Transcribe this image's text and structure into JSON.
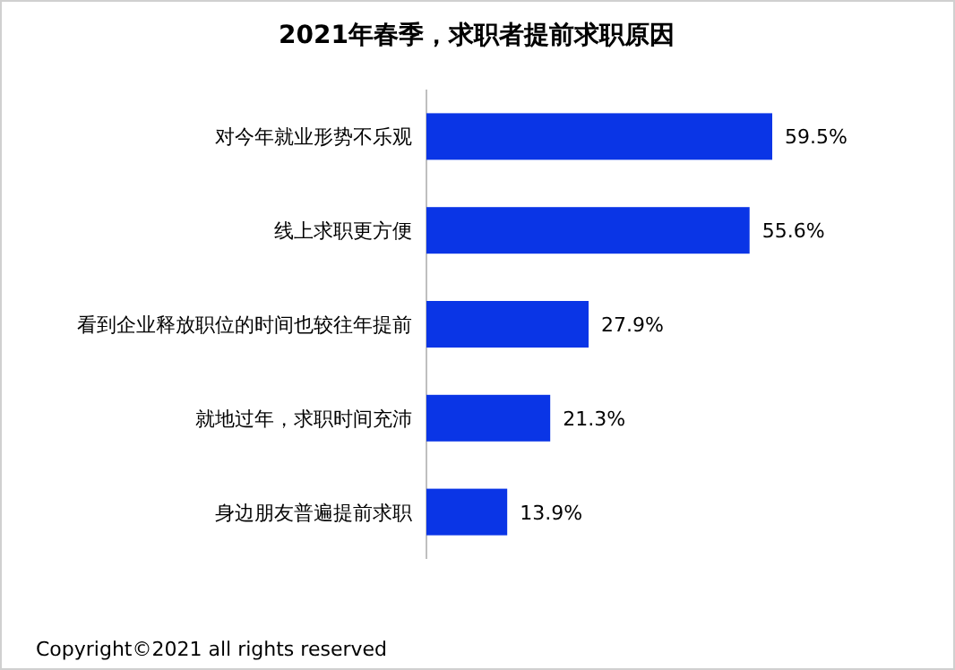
{
  "chart_data": {
    "type": "bar",
    "orientation": "horizontal",
    "title": "2021年春季，求职者提前求职原因",
    "categories": [
      "对今年就业形势不乐观",
      "线上求职更方便",
      "看到企业释放职位的时间也较往年提前",
      "就地过年，求职时间充沛",
      "身边朋友普遍提前求职"
    ],
    "values": [
      59.5,
      55.6,
      27.9,
      21.3,
      13.9
    ],
    "value_labels": [
      "59.5%",
      "55.6%",
      "27.9%",
      "21.3%",
      "13.9%"
    ],
    "color": "#0a35e6",
    "annotations": [
      "Copyright©2021 all rights reserved"
    ]
  }
}
